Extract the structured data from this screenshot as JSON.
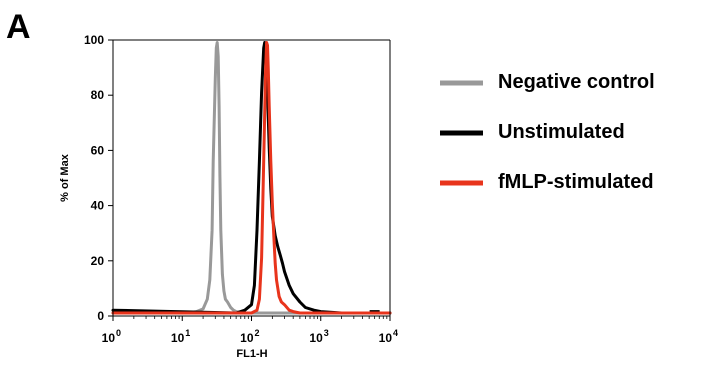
{
  "panel_label": "A",
  "chart_data": {
    "type": "line",
    "title": "",
    "xlabel": "FL1-H",
    "ylabel": "% of Max",
    "x_scale": "log",
    "xlim": [
      1,
      10000
    ],
    "ylim": [
      0,
      100
    ],
    "x_ticks": [
      {
        "base": "10",
        "exp": "0",
        "value": 1
      },
      {
        "base": "10",
        "exp": "1",
        "value": 10
      },
      {
        "base": "10",
        "exp": "2",
        "value": 100
      },
      {
        "base": "10",
        "exp": "3",
        "value": 1000
      },
      {
        "base": "10",
        "exp": "4",
        "value": 10000
      }
    ],
    "y_ticks": [
      "0",
      "20",
      "40",
      "60",
      "80",
      "100"
    ],
    "y_tick_values": [
      0,
      20,
      40,
      60,
      80,
      100
    ],
    "legend_position": "right",
    "series": [
      {
        "name": "Negative control",
        "color": "#999999",
        "x": [
          1,
          12,
          16,
          20,
          23,
          25,
          27,
          28,
          30,
          31,
          32,
          33,
          34,
          35,
          36,
          38,
          40,
          42,
          45,
          50,
          55,
          60,
          80,
          120,
          300,
          10000
        ],
        "y": [
          0,
          0,
          0.5,
          1.5,
          5,
          12,
          30,
          55,
          85,
          96,
          98,
          93,
          75,
          50,
          30,
          14,
          8,
          5,
          4,
          2,
          1,
          0.5,
          0,
          0,
          0,
          0
        ]
      },
      {
        "name": "Unstimulated",
        "color": "#000000",
        "x": [
          1,
          60,
          80,
          100,
          110,
          120,
          130,
          140,
          150,
          155,
          160,
          165,
          170,
          180,
          190,
          200,
          220,
          240,
          260,
          280,
          300,
          350,
          400,
          500,
          600,
          800,
          1000,
          2000,
          5000,
          10000
        ],
        "y": [
          1,
          0,
          1,
          3,
          10,
          30,
          55,
          80,
          96,
          98,
          97,
          90,
          80,
          60,
          45,
          35,
          28,
          24,
          21,
          18,
          15,
          10,
          7,
          4,
          2,
          1,
          0.5,
          0,
          0,
          0
        ],
        "end_mark": {
          "x": 6000,
          "y": 0.5
        }
      },
      {
        "name": "fMLP-stimulated",
        "color": "#e8341c",
        "x": [
          1,
          100,
          120,
          130,
          140,
          150,
          160,
          165,
          170,
          175,
          180,
          190,
          200,
          210,
          220,
          230,
          240,
          250,
          270,
          300,
          350,
          400,
          500,
          1000,
          10000
        ],
        "y": [
          0,
          0,
          1,
          5,
          20,
          55,
          88,
          98,
          97,
          88,
          75,
          55,
          40,
          28,
          18,
          12,
          9,
          6,
          4,
          3,
          1,
          0.5,
          0,
          0,
          0
        ]
      }
    ]
  }
}
